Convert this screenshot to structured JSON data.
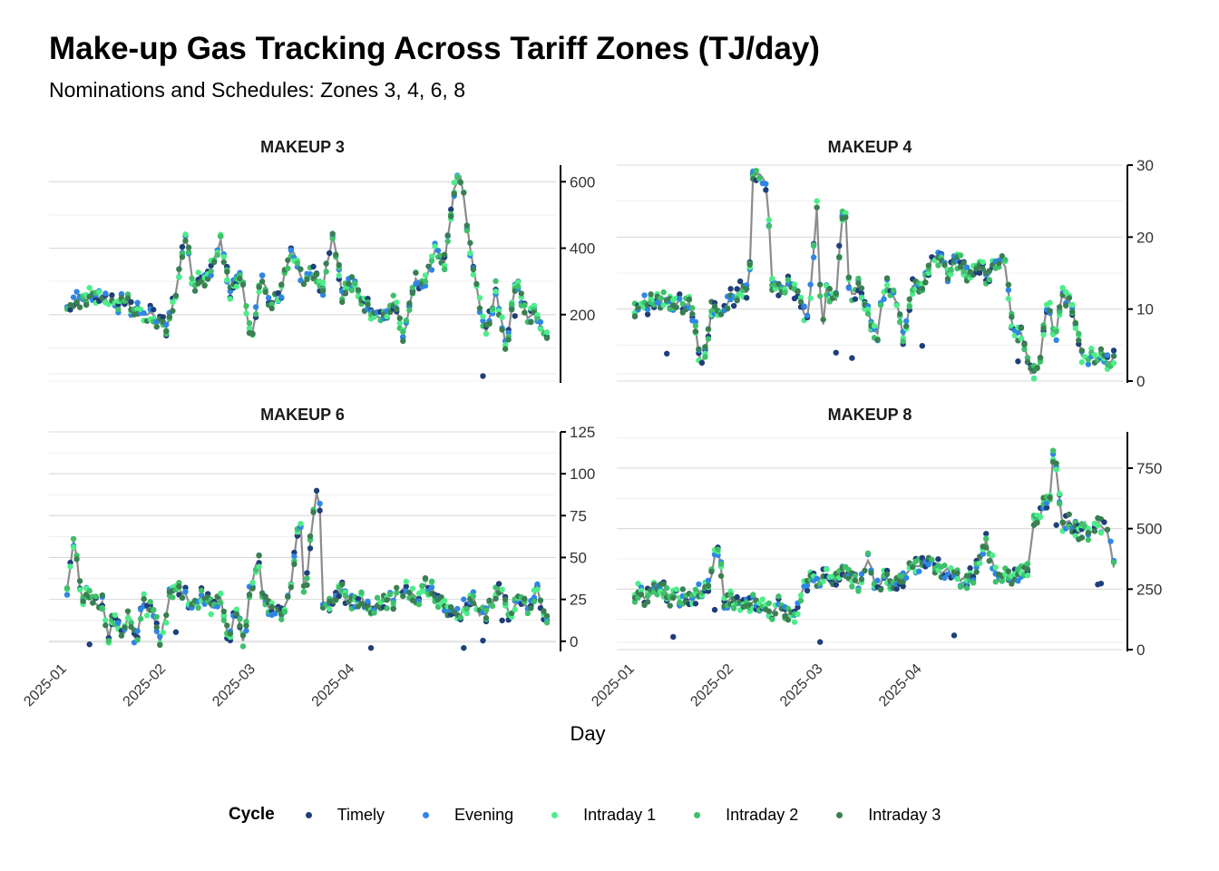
{
  "title": "Make-up Gas Tracking Across Tariff Zones (TJ/day)",
  "subtitle": "Nominations and Schedules: Zones 3, 4, 6, 8",
  "xlabel": "Day",
  "x_ticks": [
    "2025-01",
    "2025-02",
    "2025-03",
    "2025-04"
  ],
  "legend": {
    "title": "Cycle",
    "items": [
      {
        "label": "Timely",
        "color": "#1f3f7a"
      },
      {
        "label": "Evening",
        "color": "#2f86e6"
      },
      {
        "label": "Intraday 1",
        "color": "#4dee8a"
      },
      {
        "label": "Intraday 2",
        "color": "#3fc06a"
      },
      {
        "label": "Intraday 3",
        "color": "#3a7f52"
      }
    ]
  },
  "chart_data": [
    {
      "type": "line+scatter",
      "facet": "MAKEUP 3",
      "ylim": [
        0,
        650
      ],
      "yticks": [
        200,
        400,
        600
      ],
      "series_line": "Intraday 3 scheduled (grey line)",
      "keypoints": [
        [
          0,
          220
        ],
        [
          10,
          250
        ],
        [
          20,
          240
        ],
        [
          30,
          230
        ],
        [
          40,
          200
        ],
        [
          45,
          180
        ],
        [
          48,
          155
        ],
        [
          53,
          260
        ],
        [
          58,
          440
        ],
        [
          62,
          290
        ],
        [
          70,
          320
        ],
        [
          75,
          430
        ],
        [
          80,
          260
        ],
        [
          85,
          330
        ],
        [
          90,
          115
        ],
        [
          95,
          320
        ],
        [
          100,
          230
        ],
        [
          105,
          280
        ],
        [
          110,
          400
        ],
        [
          115,
          300
        ],
        [
          120,
          330
        ],
        [
          125,
          270
        ],
        [
          130,
          440
        ],
        [
          135,
          260
        ],
        [
          140,
          300
        ],
        [
          145,
          230
        ],
        [
          150,
          200
        ],
        [
          155,
          180
        ],
        [
          160,
          250
        ],
        [
          165,
          130
        ],
        [
          170,
          300
        ],
        [
          175,
          290
        ],
        [
          180,
          400
        ],
        [
          185,
          350
        ],
        [
          190,
          590
        ],
        [
          193,
          630
        ],
        [
          197,
          410
        ],
        [
          200,
          300
        ],
        [
          205,
          130
        ],
        [
          210,
          280
        ],
        [
          215,
          100
        ],
        [
          220,
          310
        ],
        [
          225,
          200
        ],
        [
          230,
          190
        ],
        [
          235,
          120
        ]
      ],
      "scatter_offsets": {
        "Timely": -0.08,
        "Evening": 0.03,
        "Intraday 1": 0.05,
        "Intraday 2": 0.04,
        "Intraday 3": 0.0
      }
    },
    {
      "type": "line+scatter",
      "facet": "MAKEUP 4",
      "ylim": [
        0,
        30
      ],
      "yticks": [
        0,
        10,
        20,
        30
      ],
      "series_line": "Intraday 3 scheduled (grey line)",
      "keypoints": [
        [
          0,
          10
        ],
        [
          10,
          11.5
        ],
        [
          20,
          11
        ],
        [
          25,
          10
        ],
        [
          28,
          4
        ],
        [
          30,
          2
        ],
        [
          34,
          10.5
        ],
        [
          38,
          10
        ],
        [
          44,
          12
        ],
        [
          50,
          13
        ],
        [
          52,
          29.5
        ],
        [
          55,
          28
        ],
        [
          58,
          27.5
        ],
        [
          60,
          14
        ],
        [
          64,
          12.5
        ],
        [
          68,
          14
        ],
        [
          72,
          12
        ],
        [
          76,
          8
        ],
        [
          80,
          25
        ],
        [
          82,
          5
        ],
        [
          84,
          13
        ],
        [
          88,
          11
        ],
        [
          92,
          27
        ],
        [
          94,
          12
        ],
        [
          98,
          13
        ],
        [
          102,
          10
        ],
        [
          106,
          6
        ],
        [
          110,
          13.5
        ],
        [
          114,
          11.5
        ],
        [
          118,
          6
        ],
        [
          122,
          14
        ],
        [
          126,
          12.5
        ],
        [
          130,
          17.5
        ],
        [
          134,
          16.5
        ],
        [
          138,
          15
        ],
        [
          142,
          17
        ],
        [
          146,
          14
        ],
        [
          150,
          16.5
        ],
        [
          154,
          14.5
        ],
        [
          158,
          16.5
        ],
        [
          162,
          17
        ],
        [
          166,
          6
        ],
        [
          170,
          6.5
        ],
        [
          174,
          1
        ],
        [
          176,
          0.5
        ],
        [
          178,
          3
        ],
        [
          181,
          12
        ],
        [
          184,
          6
        ],
        [
          188,
          12.5
        ],
        [
          192,
          10
        ],
        [
          196,
          3
        ],
        [
          200,
          4
        ],
        [
          205,
          3
        ],
        [
          210,
          3
        ]
      ]
    },
    {
      "type": "line+scatter",
      "facet": "MAKEUP 6",
      "ylim": [
        -5,
        125
      ],
      "yticks": [
        0,
        25,
        50,
        75,
        100,
        125
      ],
      "series_line": "Intraday 3 scheduled (grey line)",
      "keypoints": [
        [
          0,
          30
        ],
        [
          3,
          62
        ],
        [
          6,
          28
        ],
        [
          10,
          25
        ],
        [
          15,
          22
        ],
        [
          18,
          0
        ],
        [
          20,
          18
        ],
        [
          24,
          0
        ],
        [
          26,
          18
        ],
        [
          30,
          0
        ],
        [
          32,
          22
        ],
        [
          36,
          20
        ],
        [
          40,
          0
        ],
        [
          42,
          15
        ],
        [
          46,
          35
        ],
        [
          50,
          28
        ],
        [
          54,
          20
        ],
        [
          58,
          30
        ],
        [
          62,
          22
        ],
        [
          66,
          25
        ],
        [
          70,
          0
        ],
        [
          72,
          22
        ],
        [
          76,
          0
        ],
        [
          78,
          25
        ],
        [
          82,
          55
        ],
        [
          84,
          25
        ],
        [
          88,
          20
        ],
        [
          92,
          18
        ],
        [
          96,
          30
        ],
        [
          100,
          80
        ],
        [
          102,
          25
        ],
        [
          106,
          78
        ],
        [
          108,
          100
        ],
        [
          110,
          18
        ],
        [
          114,
          25
        ],
        [
          118,
          30
        ],
        [
          122,
          22
        ],
        [
          126,
          28
        ],
        [
          130,
          20
        ],
        [
          134,
          25
        ],
        [
          138,
          22
        ],
        [
          142,
          28
        ],
        [
          146,
          30
        ],
        [
          150,
          25
        ],
        [
          154,
          32
        ],
        [
          158,
          28
        ],
        [
          162,
          22
        ],
        [
          166,
          15
        ],
        [
          170,
          18
        ],
        [
          174,
          25
        ],
        [
          178,
          15
        ],
        [
          182,
          20
        ],
        [
          186,
          35
        ],
        [
          190,
          15
        ],
        [
          194,
          25
        ],
        [
          198,
          22
        ],
        [
          202,
          30
        ],
        [
          206,
          12
        ]
      ]
    },
    {
      "type": "line+scatter",
      "facet": "MAKEUP 8",
      "ylim": [
        0,
        900
      ],
      "yticks": [
        0,
        250,
        500,
        750
      ],
      "series_line": "Intraday 3 scheduled (grey line)",
      "keypoints": [
        [
          0,
          225
        ],
        [
          8,
          230
        ],
        [
          14,
          250
        ],
        [
          18,
          210
        ],
        [
          24,
          200
        ],
        [
          30,
          230
        ],
        [
          36,
          240
        ],
        [
          40,
          280
        ],
        [
          43,
          410
        ],
        [
          45,
          400
        ],
        [
          47,
          210
        ],
        [
          52,
          200
        ],
        [
          56,
          190
        ],
        [
          60,
          200
        ],
        [
          64,
          180
        ],
        [
          68,
          170
        ],
        [
          72,
          160
        ],
        [
          76,
          190
        ],
        [
          80,
          170
        ],
        [
          84,
          120
        ],
        [
          86,
          170
        ],
        [
          88,
          220
        ],
        [
          92,
          280
        ],
        [
          96,
          290
        ],
        [
          100,
          310
        ],
        [
          104,
          270
        ],
        [
          108,
          300
        ],
        [
          112,
          320
        ],
        [
          116,
          270
        ],
        [
          120,
          300
        ],
        [
          124,
          360
        ],
        [
          128,
          250
        ],
        [
          132,
          310
        ],
        [
          136,
          280
        ],
        [
          140,
          280
        ],
        [
          144,
          320
        ],
        [
          148,
          340
        ],
        [
          152,
          360
        ],
        [
          156,
          380
        ],
        [
          160,
          330
        ],
        [
          164,
          320
        ],
        [
          168,
          320
        ],
        [
          172,
          300
        ],
        [
          176,
          280
        ],
        [
          180,
          310
        ],
        [
          184,
          380
        ],
        [
          186,
          450
        ],
        [
          188,
          400
        ],
        [
          192,
          300
        ],
        [
          196,
          310
        ],
        [
          200,
          300
        ],
        [
          204,
          300
        ],
        [
          208,
          330
        ],
        [
          212,
          540
        ],
        [
          216,
          580
        ],
        [
          220,
          630
        ],
        [
          222,
          800
        ],
        [
          224,
          740
        ],
        [
          226,
          520
        ],
        [
          230,
          540
        ],
        [
          234,
          480
        ],
        [
          238,
          520
        ],
        [
          242,
          470
        ],
        [
          246,
          520
        ],
        [
          250,
          500
        ],
        [
          254,
          340
        ]
      ]
    }
  ]
}
